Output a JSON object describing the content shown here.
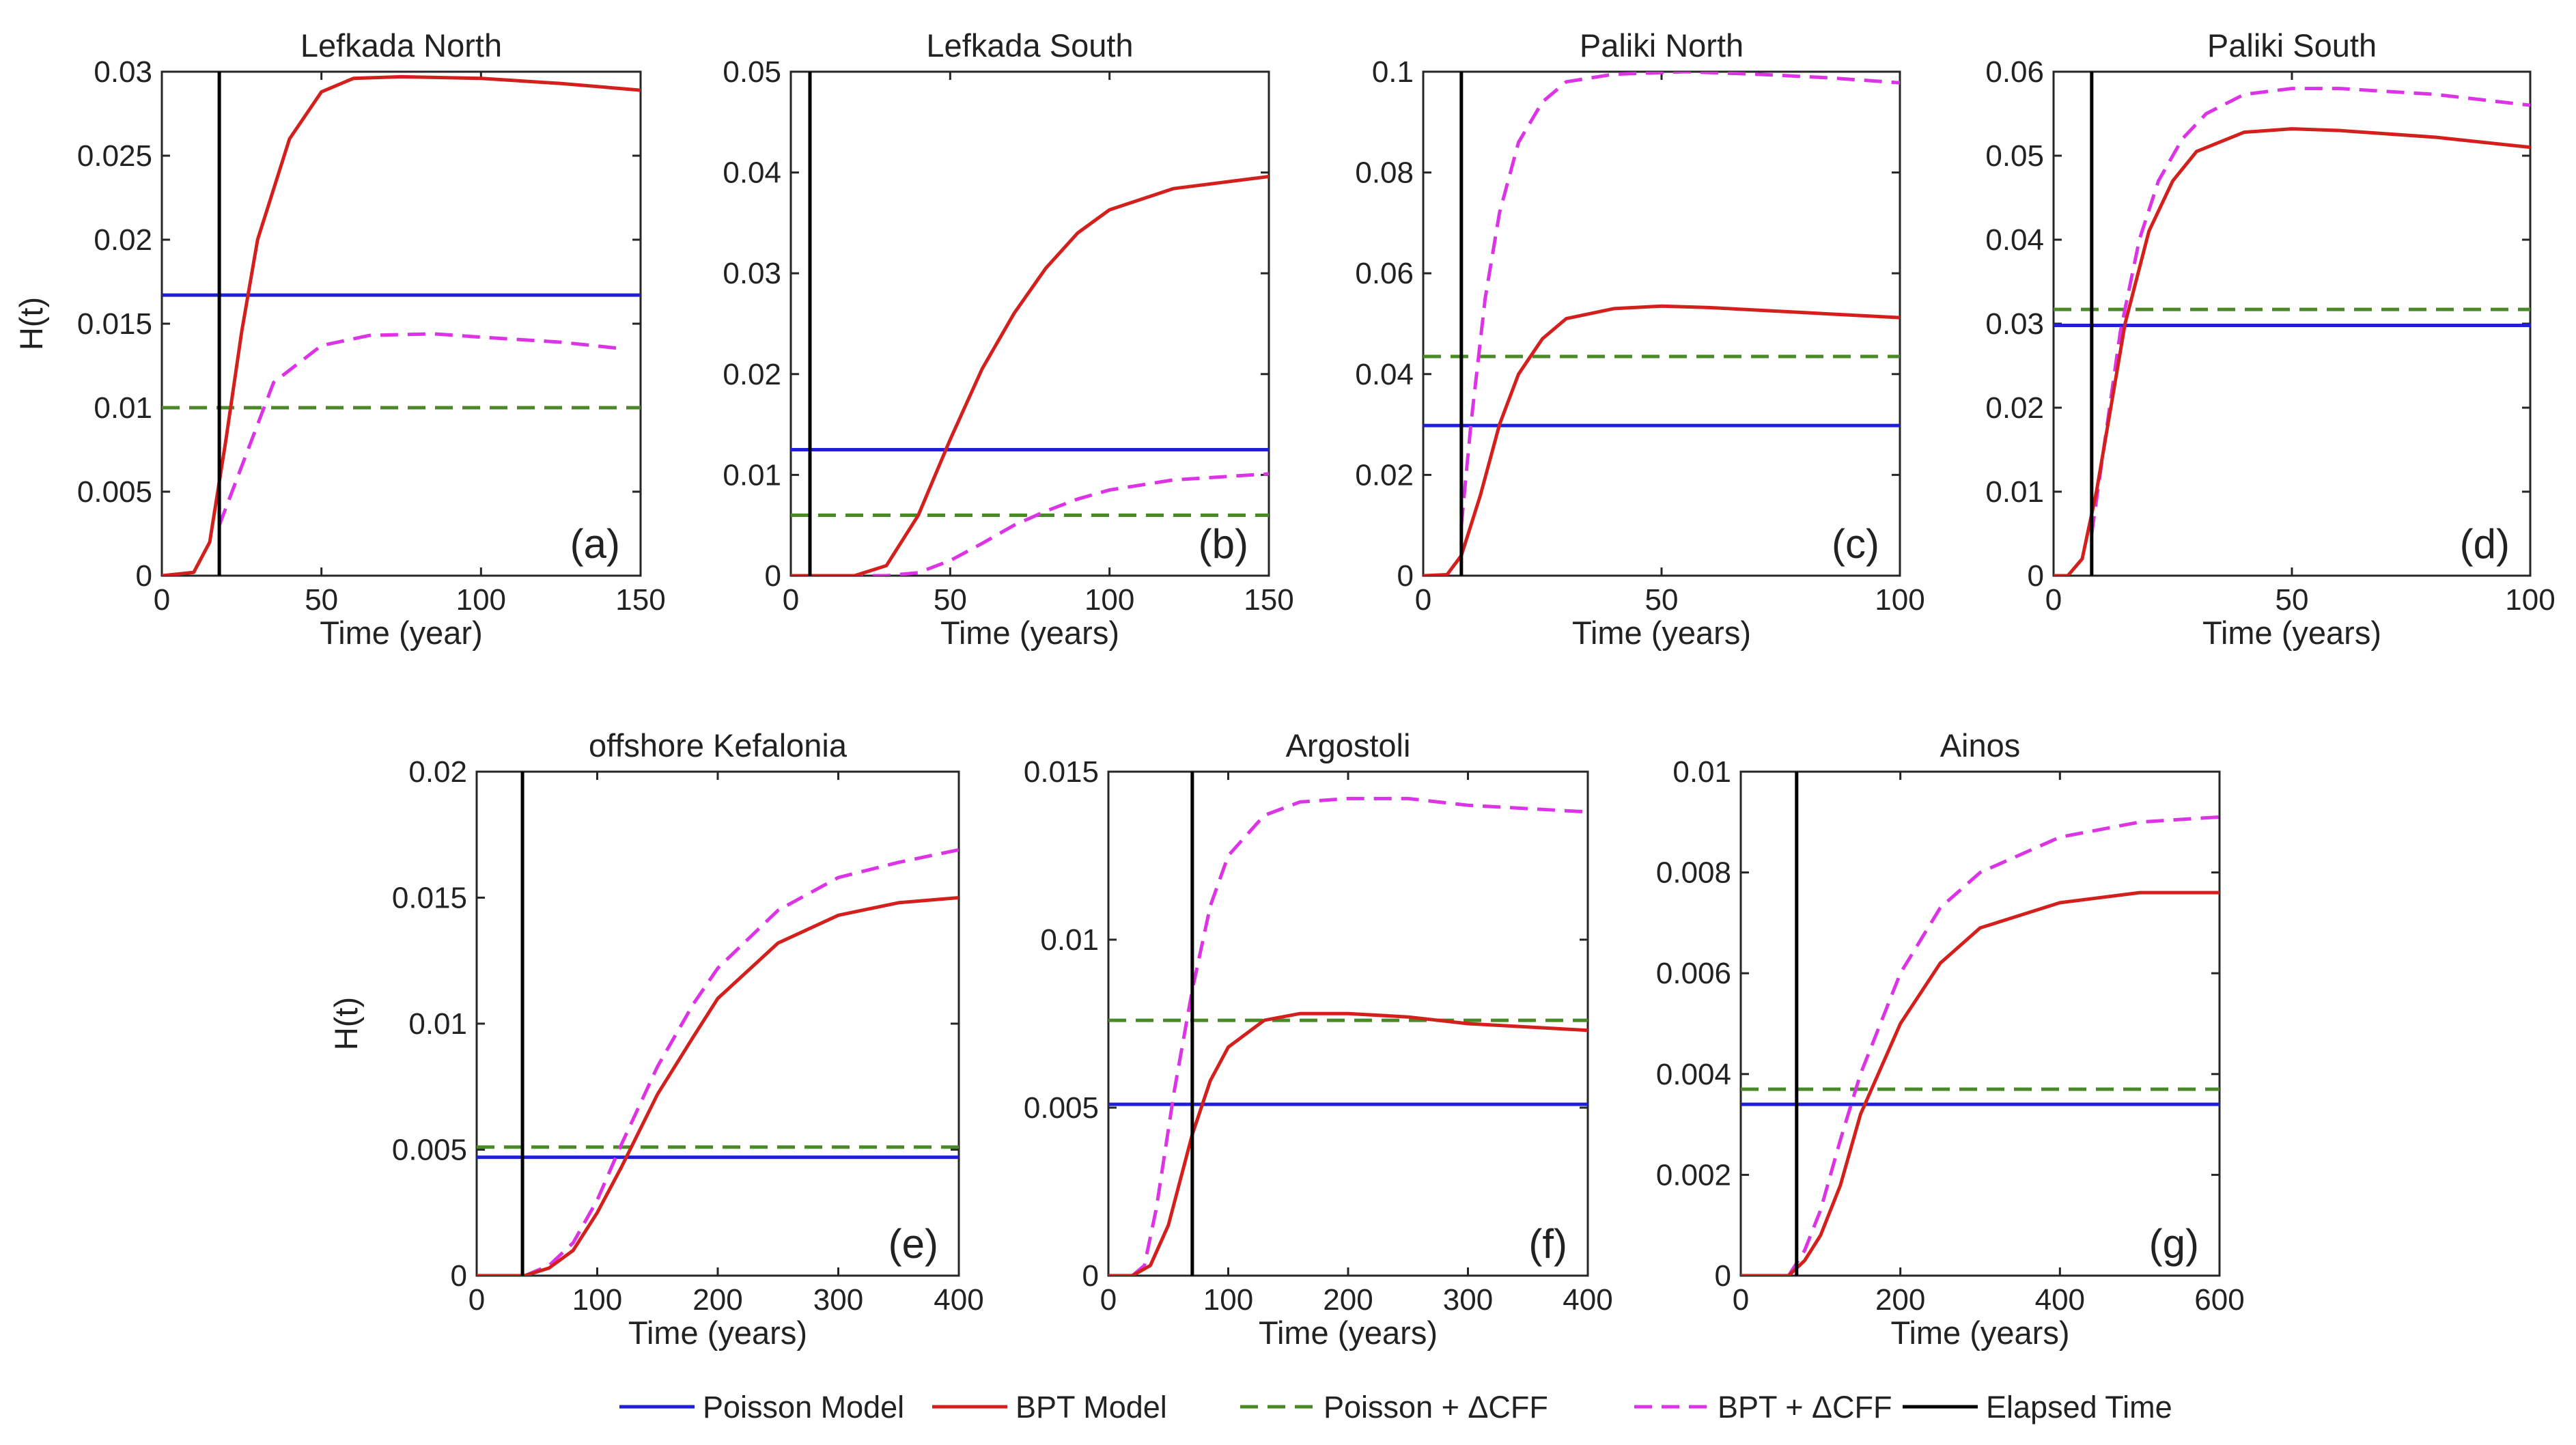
{
  "legend": {
    "items": [
      {
        "key": "poisson",
        "label": "Poisson Model",
        "color": "#1f1fd6",
        "dash": false
      },
      {
        "key": "bpt",
        "label": "BPT Model",
        "color": "#d4201d",
        "dash": false
      },
      {
        "key": "poisson_dcff",
        "label": "Poisson + ΔCFF",
        "color": "#4a8a26",
        "dash": true
      },
      {
        "key": "bpt_dcff",
        "label": "BPT + ΔCFF",
        "color": "#dd33e6",
        "dash": true
      },
      {
        "key": "elapsed",
        "label": "Elapsed Time",
        "color": "#000000",
        "dash": false
      }
    ]
  },
  "chart_data": [
    {
      "type": "line",
      "id": "a",
      "tag": "(a)",
      "title": "Lefkada North",
      "xlabel": "Time (year)",
      "ylabel": "H(t)",
      "xlim": [
        0,
        150
      ],
      "ylim": [
        0,
        0.03
      ],
      "xticks": [
        0,
        50,
        100,
        150
      ],
      "xtick_labels": [
        "0",
        "50",
        "100",
        "150"
      ],
      "yticks": [
        0,
        0.005,
        0.01,
        0.015,
        0.02,
        0.025,
        0.03
      ],
      "ytick_labels": [
        "0",
        "0.005",
        "0.01",
        "0.015",
        "0.02",
        "0.025",
        "0.03"
      ],
      "poisson": 0.0167,
      "poisson_dcff": 0.01,
      "elapsed": 18,
      "bpt": [
        [
          0,
          0
        ],
        [
          10,
          0.0002
        ],
        [
          15,
          0.002
        ],
        [
          20,
          0.008
        ],
        [
          25,
          0.0145
        ],
        [
          30,
          0.02
        ],
        [
          40,
          0.026
        ],
        [
          50,
          0.0288
        ],
        [
          60,
          0.0296
        ],
        [
          75,
          0.0297
        ],
        [
          100,
          0.0296
        ],
        [
          125,
          0.0293
        ],
        [
          150,
          0.0289
        ]
      ],
      "bpt_dcff": [
        [
          18,
          0.003
        ],
        [
          25,
          0.0065
        ],
        [
          35,
          0.0115
        ],
        [
          50,
          0.0137
        ],
        [
          65,
          0.0143
        ],
        [
          85,
          0.0144
        ],
        [
          100,
          0.0142
        ],
        [
          125,
          0.0139
        ],
        [
          145,
          0.0135
        ]
      ]
    },
    {
      "type": "line",
      "id": "b",
      "tag": "(b)",
      "title": "Lefkada South",
      "xlabel": "Time (years)",
      "ylabel": "",
      "xlim": [
        0,
        150
      ],
      "ylim": [
        0,
        0.05
      ],
      "xticks": [
        0,
        50,
        100,
        150
      ],
      "xtick_labels": [
        "0",
        "50",
        "100",
        "150"
      ],
      "yticks": [
        0,
        0.01,
        0.02,
        0.03,
        0.04,
        0.05
      ],
      "ytick_labels": [
        "0",
        "0.01",
        "0.02",
        "0.03",
        "0.04",
        "0.05"
      ],
      "poisson": 0.0125,
      "poisson_dcff": 0.006,
      "elapsed": 6,
      "bpt": [
        [
          0,
          0
        ],
        [
          20,
          0
        ],
        [
          30,
          0.001
        ],
        [
          40,
          0.006
        ],
        [
          50,
          0.0135
        ],
        [
          60,
          0.0205
        ],
        [
          70,
          0.026
        ],
        [
          80,
          0.0305
        ],
        [
          90,
          0.034
        ],
        [
          100,
          0.0363
        ],
        [
          120,
          0.0384
        ],
        [
          150,
          0.0396
        ]
      ],
      "bpt_dcff": [
        [
          0,
          0
        ],
        [
          30,
          0
        ],
        [
          40,
          0.0003
        ],
        [
          50,
          0.0015
        ],
        [
          60,
          0.0032
        ],
        [
          70,
          0.005
        ],
        [
          80,
          0.0064
        ],
        [
          90,
          0.0076
        ],
        [
          100,
          0.0085
        ],
        [
          120,
          0.0095
        ],
        [
          150,
          0.0101
        ]
      ]
    },
    {
      "type": "line",
      "id": "c",
      "tag": "(c)",
      "title": "Paliki North",
      "xlabel": "Time (years)",
      "ylabel": "",
      "xlim": [
        0,
        100
      ],
      "ylim": [
        0,
        0.1
      ],
      "xticks": [
        0,
        50,
        100
      ],
      "xtick_labels": [
        "0",
        "50",
        "100"
      ],
      "yticks": [
        0,
        0.02,
        0.04,
        0.06,
        0.08,
        0.1
      ],
      "ytick_labels": [
        "0",
        "0.02",
        "0.04",
        "0.06",
        "0.08",
        "0.1"
      ],
      "poisson": 0.0298,
      "poisson_dcff": 0.0435,
      "elapsed": 8,
      "bpt": [
        [
          0,
          0
        ],
        [
          5,
          0.0002
        ],
        [
          8,
          0.004
        ],
        [
          12,
          0.016
        ],
        [
          16,
          0.03
        ],
        [
          20,
          0.04
        ],
        [
          25,
          0.047
        ],
        [
          30,
          0.051
        ],
        [
          40,
          0.053
        ],
        [
          50,
          0.0535
        ],
        [
          60,
          0.0532
        ],
        [
          80,
          0.0522
        ],
        [
          100,
          0.0512
        ]
      ],
      "bpt_dcff": [
        [
          8,
          0.01
        ],
        [
          10,
          0.03
        ],
        [
          13,
          0.055
        ],
        [
          16,
          0.072
        ],
        [
          20,
          0.086
        ],
        [
          25,
          0.094
        ],
        [
          30,
          0.098
        ],
        [
          40,
          0.0995
        ],
        [
          55,
          0.1
        ],
        [
          70,
          0.0995
        ],
        [
          85,
          0.0988
        ],
        [
          100,
          0.0978
        ]
      ]
    },
    {
      "type": "line",
      "id": "d",
      "tag": "(d)",
      "title": "Paliki South",
      "xlabel": "Time (years)",
      "ylabel": "",
      "xlim": [
        0,
        100
      ],
      "ylim": [
        0,
        0.06
      ],
      "xticks": [
        0,
        50,
        100
      ],
      "xtick_labels": [
        "0",
        "50",
        "100"
      ],
      "yticks": [
        0,
        0.01,
        0.02,
        0.03,
        0.04,
        0.05,
        0.06
      ],
      "ytick_labels": [
        "0",
        "0.01",
        "0.02",
        "0.03",
        "0.04",
        "0.05",
        "0.06"
      ],
      "poisson": 0.0298,
      "poisson_dcff": 0.0317,
      "elapsed": 8,
      "bpt": [
        [
          0,
          0
        ],
        [
          3,
          0
        ],
        [
          6,
          0.002
        ],
        [
          9,
          0.01
        ],
        [
          12,
          0.02
        ],
        [
          15,
          0.03
        ],
        [
          20,
          0.041
        ],
        [
          25,
          0.047
        ],
        [
          30,
          0.0505
        ],
        [
          40,
          0.0528
        ],
        [
          50,
          0.0532
        ],
        [
          60,
          0.053
        ],
        [
          80,
          0.0522
        ],
        [
          100,
          0.051
        ]
      ],
      "bpt_dcff": [
        [
          8,
          0.005
        ],
        [
          11,
          0.017
        ],
        [
          14,
          0.029
        ],
        [
          18,
          0.04
        ],
        [
          22,
          0.047
        ],
        [
          27,
          0.052
        ],
        [
          32,
          0.055
        ],
        [
          40,
          0.0573
        ],
        [
          50,
          0.058
        ],
        [
          60,
          0.058
        ],
        [
          80,
          0.0573
        ],
        [
          100,
          0.056
        ]
      ]
    },
    {
      "type": "line",
      "id": "e",
      "tag": "(e)",
      "title": "offshore Kefalonia",
      "xlabel": "Time (years)",
      "ylabel": "H(t)",
      "xlim": [
        0,
        400
      ],
      "ylim": [
        0,
        0.02
      ],
      "xticks": [
        0,
        100,
        200,
        300,
        400
      ],
      "xtick_labels": [
        "0",
        "100",
        "200",
        "300",
        "400"
      ],
      "yticks": [
        0,
        0.005,
        0.01,
        0.015,
        0.02
      ],
      "ytick_labels": [
        "0",
        "0.005",
        "0.01",
        "0.015",
        "0.02"
      ],
      "poisson": 0.0047,
      "poisson_dcff": 0.0051,
      "elapsed": 38,
      "bpt": [
        [
          0,
          0
        ],
        [
          40,
          0
        ],
        [
          60,
          0.0003
        ],
        [
          80,
          0.001
        ],
        [
          100,
          0.0025
        ],
        [
          120,
          0.0043
        ],
        [
          150,
          0.0072
        ],
        [
          180,
          0.0095
        ],
        [
          200,
          0.011
        ],
        [
          250,
          0.0132
        ],
        [
          300,
          0.0143
        ],
        [
          350,
          0.0148
        ],
        [
          400,
          0.015
        ]
      ],
      "bpt_dcff": [
        [
          40,
          0
        ],
        [
          60,
          0.0004
        ],
        [
          80,
          0.0013
        ],
        [
          100,
          0.003
        ],
        [
          120,
          0.0052
        ],
        [
          150,
          0.0083
        ],
        [
          180,
          0.0108
        ],
        [
          200,
          0.0122
        ],
        [
          250,
          0.0145
        ],
        [
          300,
          0.0158
        ],
        [
          350,
          0.0164
        ],
        [
          400,
          0.0169
        ]
      ]
    },
    {
      "type": "line",
      "id": "f",
      "tag": "(f)",
      "title": "Argostoli",
      "xlabel": "Time (years)",
      "ylabel": "",
      "xlim": [
        0,
        400
      ],
      "ylim": [
        0,
        0.015
      ],
      "xticks": [
        0,
        100,
        200,
        300,
        400
      ],
      "xtick_labels": [
        "0",
        "100",
        "200",
        "300",
        "400"
      ],
      "yticks": [
        0,
        0.005,
        0.01,
        0.015
      ],
      "ytick_labels": [
        "0",
        "0.005",
        "0.01",
        "0.015"
      ],
      "poisson": 0.0051,
      "poisson_dcff": 0.0076,
      "elapsed": 70,
      "bpt": [
        [
          0,
          0
        ],
        [
          20,
          0
        ],
        [
          35,
          0.0003
        ],
        [
          50,
          0.0015
        ],
        [
          70,
          0.0042
        ],
        [
          85,
          0.0058
        ],
        [
          100,
          0.0068
        ],
        [
          130,
          0.0076
        ],
        [
          160,
          0.0078
        ],
        [
          200,
          0.0078
        ],
        [
          250,
          0.0077
        ],
        [
          300,
          0.0075
        ],
        [
          350,
          0.0074
        ],
        [
          400,
          0.0073
        ]
      ],
      "bpt_dcff": [
        [
          20,
          0
        ],
        [
          30,
          0.0003
        ],
        [
          40,
          0.002
        ],
        [
          55,
          0.0055
        ],
        [
          70,
          0.0085
        ],
        [
          85,
          0.011
        ],
        [
          100,
          0.0125
        ],
        [
          130,
          0.0137
        ],
        [
          160,
          0.0141
        ],
        [
          200,
          0.0142
        ],
        [
          250,
          0.0142
        ],
        [
          300,
          0.014
        ],
        [
          350,
          0.0139
        ],
        [
          400,
          0.0138
        ]
      ]
    },
    {
      "type": "line",
      "id": "g",
      "tag": "(g)",
      "title": "Ainos",
      "xlabel": "Time (years)",
      "ylabel": "",
      "xlim": [
        0,
        600
      ],
      "ylim": [
        0,
        0.01
      ],
      "xticks": [
        0,
        200,
        400,
        600
      ],
      "xtick_labels": [
        "0",
        "200",
        "400",
        "600"
      ],
      "yticks": [
        0,
        0.002,
        0.004,
        0.006,
        0.008,
        0.01
      ],
      "ytick_labels": [
        "0",
        "0.002",
        "0.004",
        "0.006",
        "0.008",
        "0.01"
      ],
      "poisson": 0.0034,
      "poisson_dcff": 0.0037,
      "elapsed": 70,
      "bpt": [
        [
          0,
          0
        ],
        [
          60,
          0
        ],
        [
          80,
          0.0003
        ],
        [
          100,
          0.0008
        ],
        [
          125,
          0.0018
        ],
        [
          150,
          0.0032
        ],
        [
          200,
          0.005
        ],
        [
          250,
          0.0062
        ],
        [
          300,
          0.0069
        ],
        [
          400,
          0.0074
        ],
        [
          500,
          0.0076
        ],
        [
          600,
          0.0076
        ]
      ],
      "bpt_dcff": [
        [
          60,
          0
        ],
        [
          80,
          0.0005
        ],
        [
          100,
          0.0013
        ],
        [
          125,
          0.0027
        ],
        [
          150,
          0.004
        ],
        [
          200,
          0.006
        ],
        [
          250,
          0.0073
        ],
        [
          300,
          0.008
        ],
        [
          400,
          0.0087
        ],
        [
          500,
          0.009
        ],
        [
          600,
          0.0091
        ]
      ]
    }
  ]
}
